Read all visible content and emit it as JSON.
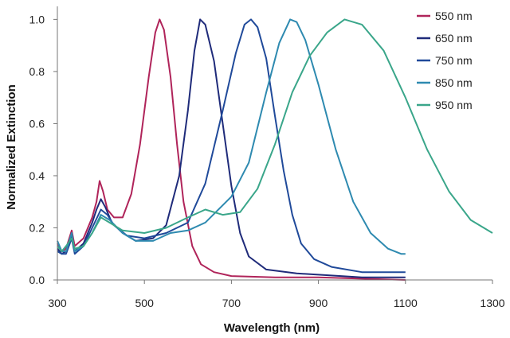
{
  "chart_data": {
    "type": "line",
    "title": "",
    "xlabel": "Wavelength (nm)",
    "ylabel": "Normalized Extinction",
    "xlim": [
      300,
      1300
    ],
    "ylim": [
      0,
      1.05
    ],
    "x_ticks": [
      300,
      500,
      700,
      900,
      1100,
      1300
    ],
    "y_ticks": [
      0.0,
      0.2,
      0.4,
      0.6,
      0.8,
      1.0
    ],
    "x_tick_labels": [
      "300",
      "500",
      "700",
      "900",
      "1100",
      "1300"
    ],
    "y_tick_labels": [
      "0.0",
      "0.2",
      "0.4",
      "0.6",
      "0.8",
      "1.0"
    ],
    "grid": false,
    "legend_position": "top-right",
    "series": [
      {
        "name": "550 nm",
        "color": "#b0245a",
        "points": [
          [
            300,
            0.14
          ],
          [
            310,
            0.11
          ],
          [
            320,
            0.12
          ],
          [
            333,
            0.19
          ],
          [
            340,
            0.13
          ],
          [
            360,
            0.16
          ],
          [
            380,
            0.24
          ],
          [
            390,
            0.3
          ],
          [
            397,
            0.38
          ],
          [
            405,
            0.34
          ],
          [
            415,
            0.27
          ],
          [
            430,
            0.24
          ],
          [
            450,
            0.24
          ],
          [
            470,
            0.33
          ],
          [
            490,
            0.52
          ],
          [
            510,
            0.78
          ],
          [
            525,
            0.95
          ],
          [
            535,
            1.0
          ],
          [
            545,
            0.96
          ],
          [
            560,
            0.78
          ],
          [
            575,
            0.52
          ],
          [
            590,
            0.3
          ],
          [
            610,
            0.13
          ],
          [
            630,
            0.06
          ],
          [
            660,
            0.03
          ],
          [
            700,
            0.015
          ],
          [
            800,
            0.01
          ],
          [
            900,
            0.01
          ],
          [
            1000,
            0.005
          ],
          [
            1100,
            0.0
          ]
        ]
      },
      {
        "name": "650 nm",
        "color": "#1f2b7a",
        "points": [
          [
            300,
            0.12
          ],
          [
            310,
            0.1
          ],
          [
            320,
            0.11
          ],
          [
            333,
            0.17
          ],
          [
            340,
            0.11
          ],
          [
            360,
            0.14
          ],
          [
            380,
            0.22
          ],
          [
            390,
            0.27
          ],
          [
            400,
            0.31
          ],
          [
            410,
            0.28
          ],
          [
            425,
            0.22
          ],
          [
            450,
            0.18
          ],
          [
            480,
            0.15
          ],
          [
            520,
            0.16
          ],
          [
            550,
            0.21
          ],
          [
            580,
            0.4
          ],
          [
            600,
            0.65
          ],
          [
            615,
            0.88
          ],
          [
            628,
            1.0
          ],
          [
            640,
            0.98
          ],
          [
            660,
            0.84
          ],
          [
            680,
            0.6
          ],
          [
            700,
            0.36
          ],
          [
            720,
            0.18
          ],
          [
            740,
            0.09
          ],
          [
            780,
            0.04
          ],
          [
            850,
            0.025
          ],
          [
            900,
            0.02
          ],
          [
            1000,
            0.01
          ],
          [
            1100,
            0.01
          ]
        ]
      },
      {
        "name": "750 nm",
        "color": "#204a9a",
        "points": [
          [
            300,
            0.11
          ],
          [
            310,
            0.1
          ],
          [
            320,
            0.1
          ],
          [
            333,
            0.16
          ],
          [
            340,
            0.1
          ],
          [
            360,
            0.13
          ],
          [
            380,
            0.2
          ],
          [
            400,
            0.27
          ],
          [
            415,
            0.25
          ],
          [
            430,
            0.21
          ],
          [
            460,
            0.17
          ],
          [
            500,
            0.16
          ],
          [
            550,
            0.18
          ],
          [
            600,
            0.22
          ],
          [
            640,
            0.37
          ],
          [
            680,
            0.65
          ],
          [
            710,
            0.87
          ],
          [
            730,
            0.98
          ],
          [
            745,
            1.0
          ],
          [
            760,
            0.97
          ],
          [
            780,
            0.85
          ],
          [
            800,
            0.63
          ],
          [
            820,
            0.42
          ],
          [
            840,
            0.25
          ],
          [
            860,
            0.14
          ],
          [
            890,
            0.08
          ],
          [
            930,
            0.05
          ],
          [
            1000,
            0.03
          ],
          [
            1100,
            0.03
          ]
        ]
      },
      {
        "name": "850 nm",
        "color": "#2e8ab0",
        "points": [
          [
            300,
            0.15
          ],
          [
            310,
            0.11
          ],
          [
            320,
            0.11
          ],
          [
            333,
            0.18
          ],
          [
            340,
            0.11
          ],
          [
            360,
            0.13
          ],
          [
            380,
            0.18
          ],
          [
            400,
            0.25
          ],
          [
            420,
            0.23
          ],
          [
            450,
            0.18
          ],
          [
            480,
            0.15
          ],
          [
            520,
            0.15
          ],
          [
            560,
            0.18
          ],
          [
            600,
            0.19
          ],
          [
            640,
            0.22
          ],
          [
            700,
            0.32
          ],
          [
            740,
            0.45
          ],
          [
            780,
            0.72
          ],
          [
            810,
            0.91
          ],
          [
            835,
            1.0
          ],
          [
            850,
            0.99
          ],
          [
            870,
            0.92
          ],
          [
            900,
            0.75
          ],
          [
            940,
            0.5
          ],
          [
            980,
            0.3
          ],
          [
            1020,
            0.18
          ],
          [
            1060,
            0.12
          ],
          [
            1090,
            0.1
          ],
          [
            1100,
            0.1
          ]
        ]
      },
      {
        "name": "950 nm",
        "color": "#3aa68a",
        "points": [
          [
            300,
            0.13
          ],
          [
            310,
            0.11
          ],
          [
            320,
            0.13
          ],
          [
            333,
            0.16
          ],
          [
            340,
            0.12
          ],
          [
            360,
            0.13
          ],
          [
            380,
            0.18
          ],
          [
            400,
            0.24
          ],
          [
            420,
            0.22
          ],
          [
            450,
            0.19
          ],
          [
            500,
            0.18
          ],
          [
            550,
            0.2
          ],
          [
            600,
            0.24
          ],
          [
            640,
            0.27
          ],
          [
            680,
            0.25
          ],
          [
            720,
            0.26
          ],
          [
            760,
            0.35
          ],
          [
            800,
            0.52
          ],
          [
            840,
            0.72
          ],
          [
            880,
            0.86
          ],
          [
            920,
            0.95
          ],
          [
            960,
            1.0
          ],
          [
            1000,
            0.98
          ],
          [
            1050,
            0.88
          ],
          [
            1100,
            0.7
          ],
          [
            1150,
            0.5
          ],
          [
            1200,
            0.34
          ],
          [
            1250,
            0.23
          ],
          [
            1300,
            0.18
          ]
        ]
      }
    ]
  }
}
